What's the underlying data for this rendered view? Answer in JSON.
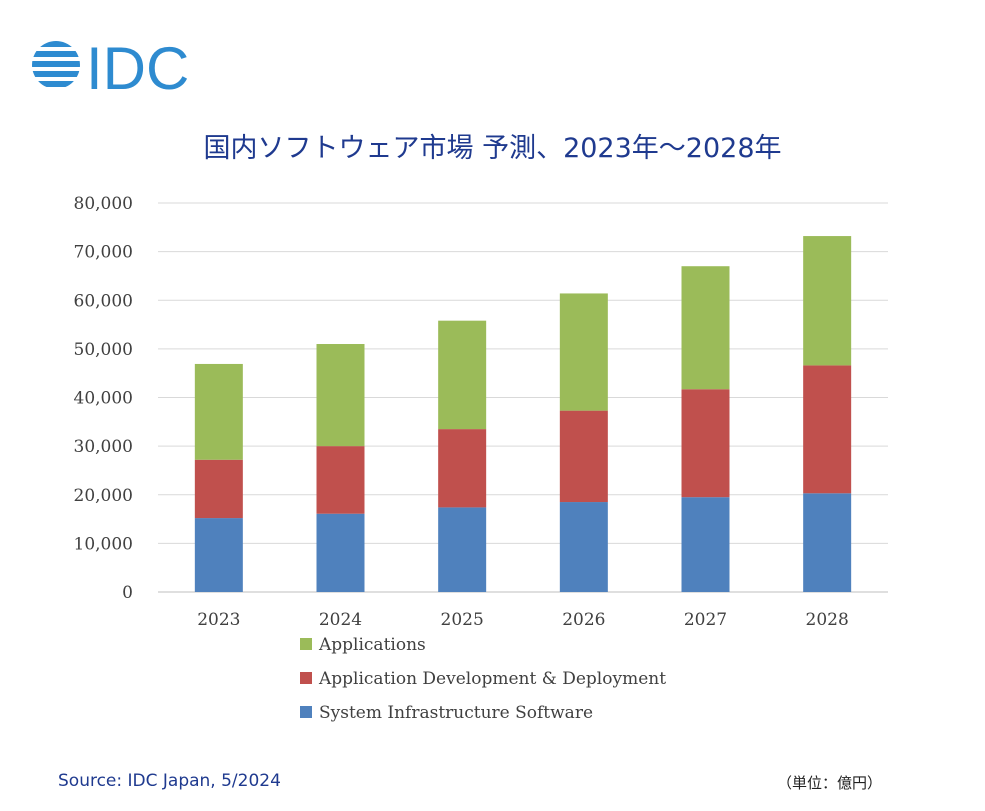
{
  "logo": {
    "text": "IDC",
    "color": "#2e8bd0"
  },
  "footer": {
    "source": "Source: IDC Japan, 5/2024",
    "unit": "（単位：億円）"
  },
  "chart_data": {
    "type": "bar",
    "stacked": true,
    "title": "国内ソフトウェア市場 予測、2023年～2028年",
    "categories": [
      "2023",
      "2024",
      "2025",
      "2026",
      "2027",
      "2028"
    ],
    "series": [
      {
        "name": "System Infrastructure Software",
        "color": "#4f81bd",
        "values": [
          15200,
          16100,
          17400,
          18500,
          19500,
          20300
        ]
      },
      {
        "name": "Application Development & Deployment",
        "color": "#c0504d",
        "values": [
          12000,
          13900,
          16100,
          18800,
          22200,
          26300
        ]
      },
      {
        "name": "Applications",
        "color": "#9bbb59",
        "values": [
          19700,
          21000,
          22300,
          24100,
          25300,
          26600
        ]
      }
    ],
    "ylim": [
      0,
      80000
    ],
    "yticks": [
      "0",
      "10,000",
      "20,000",
      "30,000",
      "40,000",
      "50,000",
      "60,000",
      "70,000",
      "80,000"
    ],
    "grid": true,
    "legend_position": "bottom",
    "legend_order": [
      "Applications",
      "Application Development & Deployment",
      "System Infrastructure Software"
    ]
  }
}
